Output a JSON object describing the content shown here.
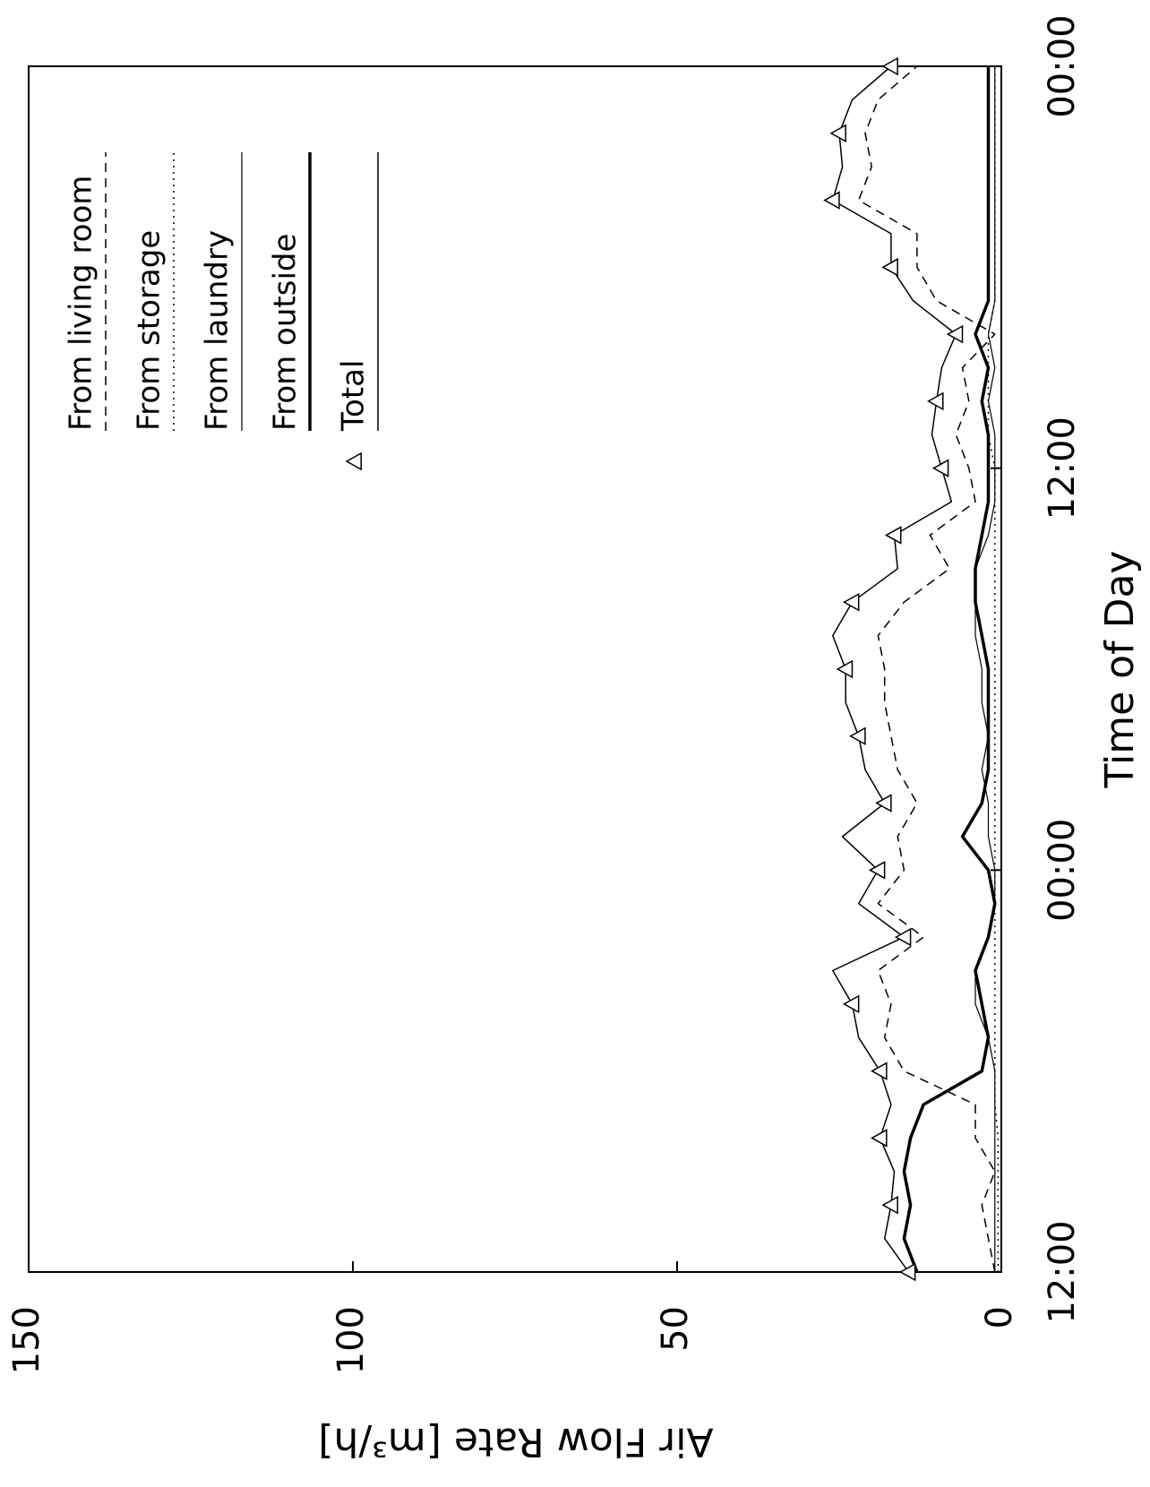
{
  "chart_data": {
    "type": "line",
    "x_label": "Time of Day",
    "y_label": "Air Flow Rate [m³/h]",
    "x": [
      0,
      1,
      2,
      3,
      4,
      5,
      6,
      7,
      8,
      9,
      10,
      11,
      12,
      13,
      14,
      15,
      16,
      17,
      18,
      19,
      20,
      21,
      22,
      23,
      24,
      25,
      26,
      27,
      28,
      29,
      30,
      31,
      32,
      33,
      34,
      35,
      36
    ],
    "xlim": [
      0,
      36
    ],
    "xticks": [
      {
        "value": 0,
        "label": "12:00"
      },
      {
        "value": 12,
        "label": "00:00"
      },
      {
        "value": 24,
        "label": "12:00"
      },
      {
        "value": 36,
        "label": "00:00"
      }
    ],
    "ylim": [
      0,
      150
    ],
    "yticks": [
      0,
      50,
      100,
      150
    ],
    "series": [
      {
        "name": "From living room",
        "color": "#000000",
        "linestyle": "dashed",
        "linewidth": 1.5,
        "values": [
          1,
          2,
          3,
          1,
          4,
          4,
          15,
          18,
          17,
          19,
          12,
          19,
          15,
          16,
          13,
          16,
          17,
          18,
          18,
          19,
          15,
          8,
          11,
          4,
          5,
          7,
          5,
          6,
          1,
          10,
          13,
          13,
          22,
          20,
          21,
          19,
          13
        ]
      },
      {
        "name": "From storage",
        "color": "#000000",
        "linestyle": "dotted",
        "linewidth": 1.5,
        "values": [
          0.5,
          0.5,
          0.5,
          0.5,
          0.5,
          1,
          1,
          1,
          1,
          1,
          1,
          1,
          1,
          1,
          1,
          1,
          1,
          1,
          1,
          1,
          1,
          1,
          1,
          1,
          1,
          2,
          2,
          2,
          2,
          1,
          1,
          1,
          1,
          1,
          1,
          1,
          1
        ]
      },
      {
        "name": "From laundry",
        "color": "#000000",
        "linestyle": "solid",
        "linewidth": 1.2,
        "values": [
          1,
          1,
          1,
          1,
          1,
          1,
          1,
          2,
          4,
          4,
          2,
          1,
          1,
          2,
          2,
          3,
          2,
          3,
          3,
          4,
          4,
          4,
          2,
          1,
          1,
          1,
          2,
          1,
          2,
          1,
          1,
          1,
          1,
          1,
          1,
          1,
          1
        ]
      },
      {
        "name": "From outside",
        "color": "#000000",
        "linestyle": "solid",
        "linewidth": 3.5,
        "values": [
          13,
          15,
          14,
          15,
          14,
          12,
          3,
          2,
          3,
          4,
          2,
          1,
          2,
          6,
          3,
          2,
          2,
          2,
          2,
          3,
          4,
          4,
          3,
          2,
          2,
          2,
          3,
          2,
          4,
          2,
          2,
          2,
          2,
          2,
          2,
          2,
          2
        ]
      },
      {
        "name": "Total",
        "color": "#000000",
        "linestyle": "solid",
        "linewidth": 1.5,
        "marker": "triangle",
        "values": [
          14.3,
          18,
          17,
          16.5,
          18.7,
          17,
          18.7,
          22,
          23,
          26,
          15,
          22,
          19,
          24.5,
          18,
          21,
          22,
          24,
          24,
          26,
          23,
          16,
          16.5,
          7.7,
          9.2,
          10.7,
          10,
          9.2,
          7,
          13.6,
          17,
          17,
          26,
          24.5,
          25,
          23,
          17
        ]
      }
    ]
  }
}
